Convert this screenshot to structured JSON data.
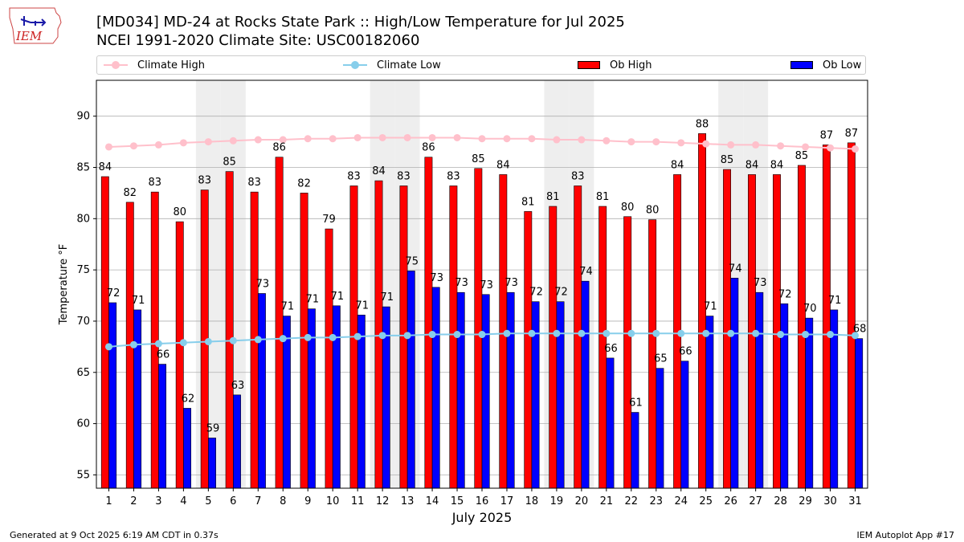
{
  "header": {
    "title_line1": "[MD034] MD-24 at Rocks State Park :: High/Low Temperature for Jul 2025",
    "title_line2": "NCEI 1991-2020 Climate Site: USC00182060",
    "logo_text": "IEM"
  },
  "legend": {
    "climate_high": "Climate High",
    "climate_low": "Climate Low",
    "ob_high": "Ob High",
    "ob_low": "Ob Low"
  },
  "footer": {
    "generated": "Generated at 9 Oct 2025 6:19 AM CDT in 0.37s",
    "app": "IEM Autoplot App #17"
  },
  "colors": {
    "ob_high": "#ff0000",
    "ob_low": "#0000ff",
    "climate_high": "#ffc0cb",
    "climate_low": "#87ceeb",
    "weekend_band": "#eeeeee",
    "grid": "#b0b0b0"
  },
  "chart_data": {
    "type": "bar",
    "title": "[MD034] MD-24 at Rocks State Park :: High/Low Temperature for Jul 2025",
    "subtitle": "NCEI 1991-2020 Climate Site: USC00182060",
    "xlabel": "July 2025",
    "ylabel": "Temperature °F",
    "ylim": [
      53.7,
      93.5
    ],
    "yticks": [
      55,
      60,
      65,
      70,
      75,
      80,
      85,
      90
    ],
    "grid": true,
    "legend_position": "top",
    "categories": [
      "1",
      "2",
      "3",
      "4",
      "5",
      "6",
      "7",
      "8",
      "9",
      "10",
      "11",
      "12",
      "13",
      "14",
      "15",
      "16",
      "17",
      "18",
      "19",
      "20",
      "21",
      "22",
      "23",
      "24",
      "25",
      "26",
      "27",
      "28",
      "29",
      "30",
      "31"
    ],
    "shaded_days": [
      5,
      6,
      12,
      13,
      19,
      20,
      26,
      27
    ],
    "series": [
      {
        "name": "Ob High",
        "kind": "bar",
        "values": [
          84.1,
          81.6,
          82.6,
          79.7,
          82.8,
          84.6,
          82.6,
          86.0,
          82.5,
          79.0,
          83.2,
          83.7,
          83.2,
          86.0,
          83.2,
          84.9,
          84.3,
          80.7,
          81.2,
          83.2,
          81.2,
          80.2,
          79.9,
          84.3,
          88.3,
          84.8,
          84.3,
          84.3,
          85.2,
          87.2,
          87.4
        ],
        "labels": [
          "84",
          "82",
          "83",
          "80",
          "83",
          "85",
          "83",
          "86",
          "82",
          "79",
          "83",
          "84",
          "83",
          "86",
          "83",
          "85",
          "84",
          "81",
          "81",
          "83",
          "81",
          "80",
          "80",
          "84",
          "88",
          "85",
          "84",
          "84",
          "85",
          "87",
          "87"
        ]
      },
      {
        "name": "Ob Low",
        "kind": "bar",
        "values": [
          71.8,
          71.1,
          65.8,
          61.5,
          58.6,
          62.8,
          72.7,
          70.5,
          71.2,
          71.5,
          70.6,
          71.4,
          74.9,
          73.3,
          72.8,
          72.6,
          72.8,
          71.9,
          71.9,
          73.9,
          66.4,
          61.1,
          65.4,
          66.1,
          70.5,
          74.2,
          72.8,
          71.7,
          70.3,
          71.1,
          68.3
        ],
        "labels": [
          "72",
          "71",
          "66",
          "62",
          "59",
          "63",
          "73",
          "71",
          "71",
          "71",
          "71",
          "71",
          "75",
          "73",
          "73",
          "73",
          "73",
          "72",
          "72",
          "74",
          "66",
          "61",
          "65",
          "66",
          "71",
          "74",
          "73",
          "72",
          "70",
          "71",
          "68"
        ]
      },
      {
        "name": "Climate High",
        "kind": "line",
        "values": [
          87.0,
          87.1,
          87.2,
          87.4,
          87.5,
          87.6,
          87.7,
          87.7,
          87.8,
          87.8,
          87.9,
          87.9,
          87.9,
          87.9,
          87.9,
          87.8,
          87.8,
          87.8,
          87.7,
          87.7,
          87.6,
          87.5,
          87.5,
          87.4,
          87.3,
          87.2,
          87.2,
          87.1,
          87.0,
          86.9,
          86.8
        ]
      },
      {
        "name": "Climate Low",
        "kind": "line",
        "values": [
          67.5,
          67.7,
          67.8,
          67.9,
          68.0,
          68.1,
          68.2,
          68.3,
          68.4,
          68.4,
          68.5,
          68.6,
          68.6,
          68.7,
          68.7,
          68.7,
          68.8,
          68.8,
          68.8,
          68.8,
          68.8,
          68.8,
          68.8,
          68.8,
          68.8,
          68.8,
          68.8,
          68.7,
          68.7,
          68.7,
          68.6
        ]
      }
    ]
  }
}
